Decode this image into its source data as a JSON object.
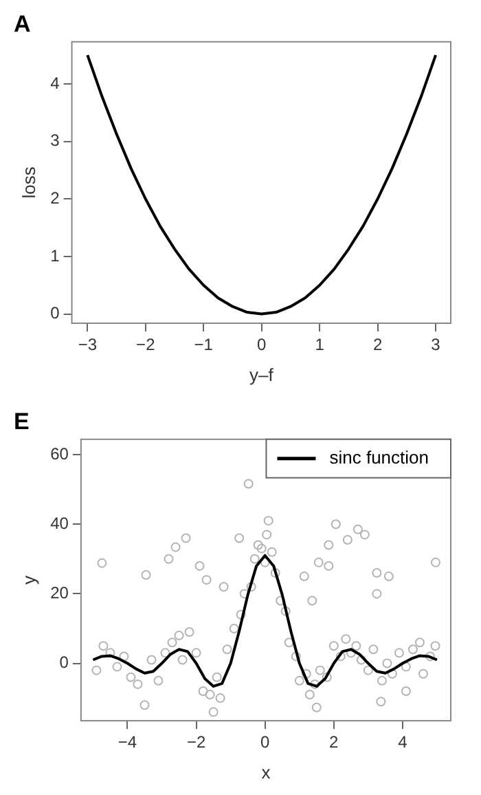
{
  "chart_data": [
    {
      "type": "line",
      "title": "A",
      "xlabel": "y–f",
      "ylabel": "loss",
      "xlim": [
        -3.27,
        3.26
      ],
      "ylim": [
        -0.16,
        4.73
      ],
      "xticks": [
        -3,
        -2,
        -1,
        0,
        1,
        2,
        3
      ],
      "yticks": [
        0,
        1,
        2,
        3,
        4
      ],
      "grid": false,
      "legend": false,
      "series": [
        {
          "color": "#000000",
          "x": [
            -3,
            -2.75,
            -2.5,
            -2.25,
            -2,
            -1.75,
            -1.5,
            -1.25,
            -1,
            -0.75,
            -0.5,
            -0.25,
            0,
            0.25,
            0.5,
            0.75,
            1,
            1.25,
            1.5,
            1.75,
            2,
            2.25,
            2.5,
            2.75,
            3
          ],
          "values": [
            4.5,
            3.78,
            3.13,
            2.53,
            2,
            1.53,
            1.13,
            0.78,
            0.5,
            0.28,
            0.13,
            0.03,
            0,
            0.03,
            0.13,
            0.28,
            0.5,
            0.78,
            1.13,
            1.53,
            2,
            2.53,
            3.13,
            3.78,
            4.5
          ]
        }
      ]
    },
    {
      "type": "scatter",
      "title": "E",
      "xlabel": "x",
      "ylabel": "y",
      "xlim": [
        -5.35,
        5.4
      ],
      "ylim": [
        -16.5,
        64.4
      ],
      "xticks": [
        -4,
        -2,
        0,
        2,
        4
      ],
      "yticks": [
        0,
        20,
        40,
        60
      ],
      "grid": false,
      "legend": "top right",
      "series": [
        {
          "marker": "circle",
          "color": "#b4b4b4",
          "x": [
            -4.74,
            -3.46,
            -2.8,
            -2.6,
            -2.3,
            -1.9,
            -1.7,
            -1.2,
            -0.75,
            -0.48,
            -1.5,
            -3.5,
            0.1,
            2.06,
            2.7,
            2.9,
            2.4,
            1.85,
            1.56,
            1.85,
            4.96,
            3.25,
            3.6,
            3.25,
            1.37,
            1.14,
            3.37,
            4.1,
            1.5,
            -4.9,
            -4.7,
            -4.5,
            -4.3,
            -4.1,
            -3.9,
            -3.7,
            -3.3,
            -3.1,
            -2.9,
            -2.7,
            -2.5,
            -2.4,
            -2.2,
            -2.0,
            -1.8,
            -1.6,
            -1.4,
            -1.3,
            -1.1,
            -0.9,
            -0.7,
            -0.6,
            -0.4,
            -0.3,
            -0.2,
            -0.1,
            0,
            0.05,
            0.2,
            0.3,
            0.45,
            0.6,
            0.7,
            0.9,
            1.0,
            1.2,
            1.3,
            1.45,
            1.6,
            1.8,
            2.0,
            2.2,
            2.35,
            2.5,
            2.65,
            2.8,
            3.0,
            3.15,
            3.4,
            3.55,
            3.7,
            3.9,
            4.1,
            4.3,
            4.5,
            4.6,
            4.8,
            4.95
          ],
          "values": [
            28.8,
            25.4,
            30,
            33.4,
            36,
            28,
            24,
            22,
            36,
            51.6,
            -14,
            -12,
            41,
            40,
            38.5,
            37,
            35.5,
            34,
            29,
            28,
            29,
            26,
            25,
            20,
            18,
            25,
            -11,
            -8,
            -12.7,
            -2,
            5,
            3,
            -1,
            2,
            -4,
            -6,
            1,
            -5,
            3,
            6,
            8,
            1,
            9,
            3,
            -8,
            -9,
            -4,
            -10,
            4,
            10,
            14,
            20,
            22,
            30,
            34,
            33,
            29,
            37,
            32,
            26,
            18,
            15,
            6,
            2,
            -5,
            -3,
            -9,
            -6,
            -2,
            -4,
            5,
            2,
            7,
            3,
            5,
            1,
            -2,
            4,
            -5,
            0,
            -3,
            3,
            -1,
            4,
            6,
            -3,
            2,
            5
          ]
        },
        {
          "type": "line",
          "name": "sinc function",
          "color": "#000000",
          "x": [
            -5,
            -4.75,
            -4.5,
            -4.25,
            -4,
            -3.75,
            -3.5,
            -3.25,
            -3,
            -2.75,
            -2.5,
            -2.25,
            -2,
            -1.75,
            -1.5,
            -1.25,
            -1,
            -0.75,
            -0.5,
            -0.25,
            0,
            0.25,
            0.5,
            0.75,
            1,
            1.25,
            1.5,
            1.75,
            2,
            2.25,
            2.5,
            2.75,
            3,
            3.25,
            3.5,
            3.75,
            4,
            4.25,
            4.5,
            4.75,
            5
          ],
          "values": [
            1,
            2,
            2.2,
            1.3,
            0,
            -1.6,
            -2.8,
            -2.3,
            0,
            2.6,
            4,
            3.4,
            0,
            -4.4,
            -6.6,
            -5.8,
            0,
            9.3,
            19.7,
            28,
            31,
            28,
            19.7,
            9.3,
            0,
            -5.8,
            -6.6,
            -4.4,
            0,
            3.4,
            4,
            2.6,
            0,
            -2.3,
            -2.8,
            -1.6,
            0,
            1.3,
            2.2,
            2,
            1
          ]
        }
      ]
    }
  ]
}
